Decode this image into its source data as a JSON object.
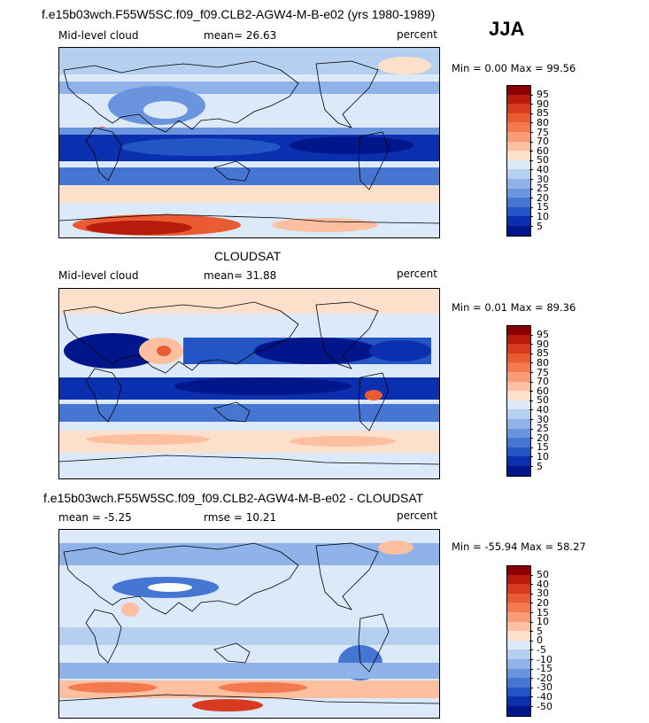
{
  "season": "JJA",
  "panels": [
    {
      "title": "f.e15b03wch.F55W5SC.f09_f09.CLB2-AGW4-M-B-e02 (yrs 1980-1989)",
      "left_label": "Mid-level cloud",
      "center_label": "mean=  26.63",
      "right_label": "percent",
      "minmax": "Min =   0.00 Max =  99.56",
      "legend_labels": [
        "95",
        "90",
        "85",
        "80",
        "75",
        "70",
        "60",
        "50",
        "40",
        "30",
        "25",
        "20",
        "15",
        "10",
        "5"
      ]
    },
    {
      "title": "CLOUDSAT",
      "left_label": "Mid-level cloud",
      "center_label": "mean=  31.88",
      "right_label": "percent",
      "minmax": "Min =   0.01 Max =  89.36",
      "legend_labels": [
        "95",
        "90",
        "85",
        "80",
        "75",
        "70",
        "60",
        "50",
        "40",
        "30",
        "25",
        "20",
        "15",
        "10",
        "5"
      ]
    },
    {
      "title": "f.e15b03wch.F55W5SC.f09_f09.CLB2-AGW4-M-B-e02 - CLOUDSAT",
      "left_label": "mean =  -5.25",
      "center_label": "rmse =  10.21",
      "right_label": "percent",
      "minmax": "Min = -55.94 Max =  58.27",
      "legend_labels": [
        "50",
        "40",
        "30",
        "20",
        "15",
        "10",
        "5",
        "0",
        "-5",
        "-10",
        "-15",
        "-20",
        "-30",
        "-40",
        "-50"
      ]
    }
  ],
  "colors": {
    "scale16": [
      "#8b0000",
      "#b81a0c",
      "#d73a1e",
      "#ea5a33",
      "#f37a4f",
      "#f89c76",
      "#fcbfa0",
      "#fde0cc",
      "#dbe9f8",
      "#b4cff0",
      "#8fb3e8",
      "#6a95de",
      "#4576d2",
      "#2455c4",
      "#0a30b0",
      "#00168a"
    ]
  }
}
